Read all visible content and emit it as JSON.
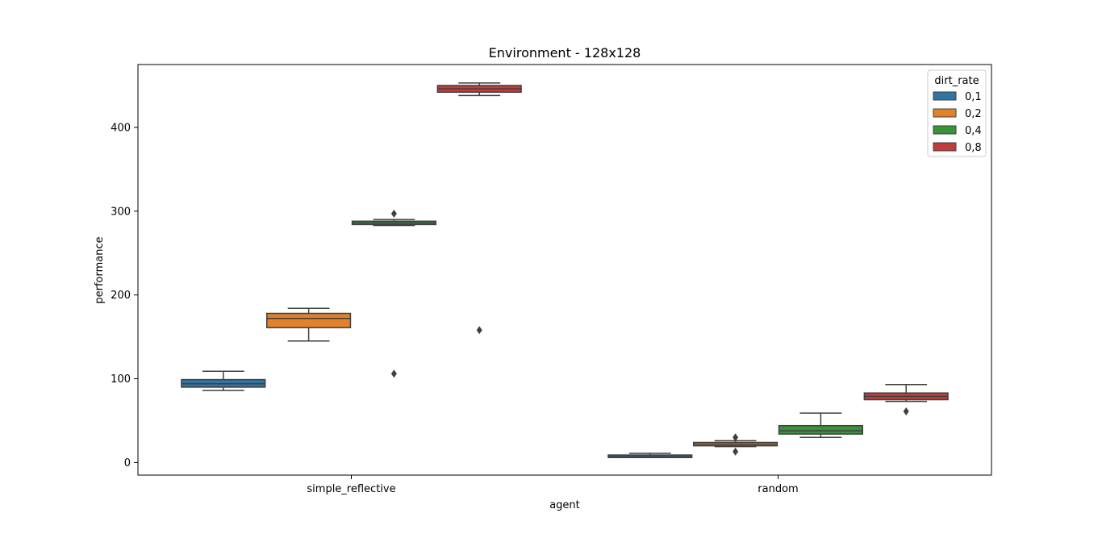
{
  "chart_data": {
    "type": "box",
    "title": "Environment - 128x128",
    "xlabel": "agent",
    "ylabel": "performance",
    "categories": [
      "simple_reflective",
      "random"
    ],
    "ylim": [
      -15,
      475
    ],
    "yticks": [
      0,
      100,
      200,
      300,
      400
    ],
    "grid": false,
    "legend": {
      "title": "dirt_rate",
      "placement": "top-right",
      "entries": [
        "0,1",
        "0,2",
        "0,4",
        "0,8"
      ]
    },
    "series": [
      {
        "name": "0,1",
        "color": "#3274a1",
        "boxes": [
          {
            "category": "simple_reflective",
            "whisker_low": 86,
            "q1": 90,
            "median": 94,
            "q3": 99,
            "whisker_high": 109,
            "outliers": []
          },
          {
            "category": "random",
            "whisker_low": 6,
            "q1": 6,
            "median": 7,
            "q3": 9,
            "whisker_high": 11,
            "outliers": []
          }
        ]
      },
      {
        "name": "0,2",
        "color": "#e1812c",
        "boxes": [
          {
            "category": "simple_reflective",
            "whisker_low": 145,
            "q1": 161,
            "median": 172,
            "q3": 178,
            "whisker_high": 184,
            "outliers": []
          },
          {
            "category": "random",
            "whisker_low": 19,
            "q1": 20,
            "median": 22,
            "q3": 24,
            "whisker_high": 26,
            "outliers": [
              13,
              30
            ]
          }
        ]
      },
      {
        "name": "0,4",
        "color": "#3a923a",
        "boxes": [
          {
            "category": "simple_reflective",
            "whisker_low": 283,
            "q1": 284,
            "median": 286,
            "q3": 288,
            "whisker_high": 290,
            "outliers": [
              106,
              297
            ]
          },
          {
            "category": "random",
            "whisker_low": 30,
            "q1": 34,
            "median": 38,
            "q3": 44,
            "whisker_high": 59,
            "outliers": []
          }
        ]
      },
      {
        "name": "0,8",
        "color": "#c03d3e",
        "boxes": [
          {
            "category": "simple_reflective",
            "whisker_low": 438,
            "q1": 442,
            "median": 446,
            "q3": 450,
            "whisker_high": 453,
            "outliers": [
              158
            ]
          },
          {
            "category": "random",
            "whisker_low": 73,
            "q1": 75,
            "median": 79,
            "q3": 83,
            "whisker_high": 93,
            "outliers": [
              61
            ]
          }
        ]
      }
    ]
  }
}
